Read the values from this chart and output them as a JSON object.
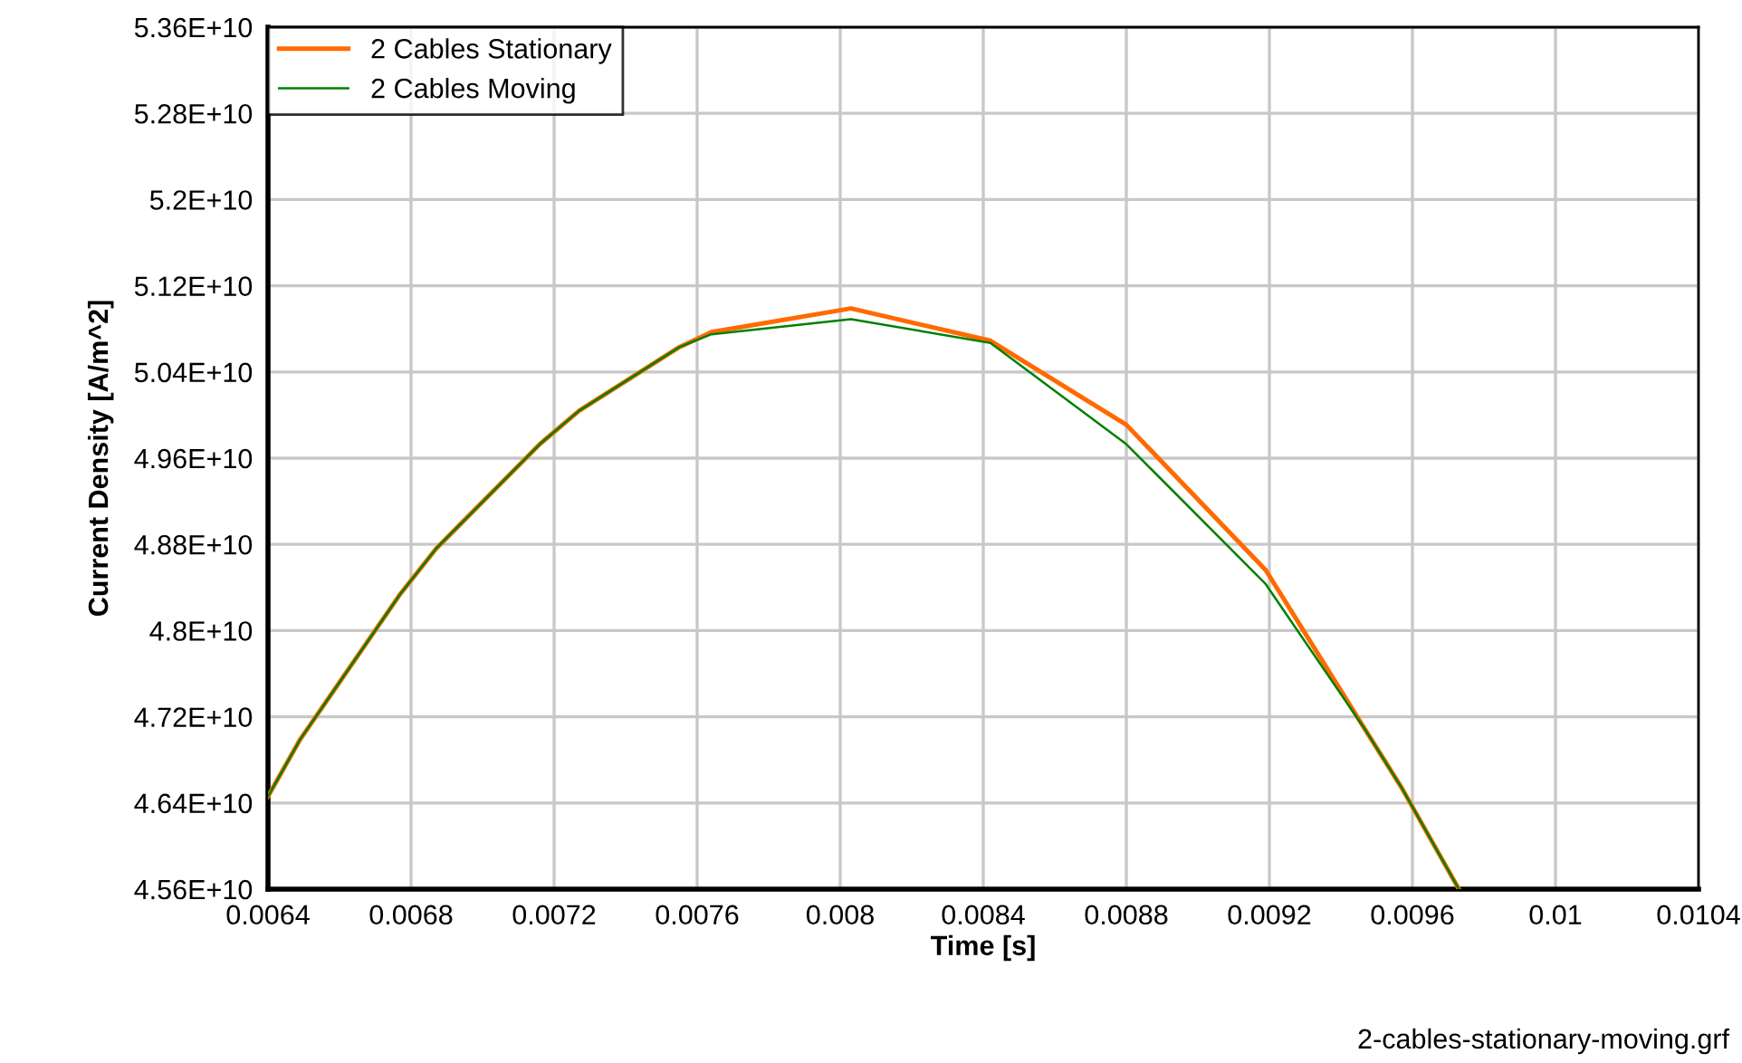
{
  "chart_data": {
    "type": "line",
    "xlabel": "Time [s]",
    "ylabel": "Current Density [A/m^2]",
    "x": [
      0.0064,
      0.00649,
      0.00677,
      0.00687,
      0.00716,
      0.00727,
      0.00755,
      0.00764,
      0.00803,
      0.00842,
      0.0088,
      0.00919,
      0.00947,
      0.00957,
      0.00973
    ],
    "series": [
      {
        "name": "2 Cables Stationary",
        "color": "#ff6a00",
        "values": [
          46460000000.0,
          46990000000.0,
          48340000000.0,
          48760000000.0,
          49730000000.0,
          50040000000.0,
          50630000000.0,
          50770000000.0,
          50990000000.0,
          50690000000.0,
          49910000000.0,
          48560000000.0,
          47070000000.0,
          46540000000.0,
          45600000000.0
        ]
      },
      {
        "name": "2 Cables Moving",
        "color": "#008000",
        "values": [
          46460000000.0,
          46990000000.0,
          48340000000.0,
          48760000000.0,
          49730000000.0,
          50040000000.0,
          50630000000.0,
          50750000000.0,
          50890000000.0,
          50670000000.0,
          49730000000.0,
          48430000000.0,
          47070000000.0,
          46540000000.0,
          45600000000.0
        ]
      }
    ],
    "xlim": [
      0.0064,
      0.0104
    ],
    "xticks": [
      0.0064,
      0.0068,
      0.0072,
      0.0076,
      0.008,
      0.0084,
      0.0088,
      0.0092,
      0.0096,
      0.01,
      0.0104
    ],
    "ylim": [
      45600000000.0,
      53600000000.0
    ],
    "yticks": [
      {
        "value": 45600000000.0,
        "label": "4.56E+10"
      },
      {
        "value": 46400000000.0,
        "label": "4.64E+10"
      },
      {
        "value": 47200000000.0,
        "label": "4.72E+10"
      },
      {
        "value": 48000000000.0,
        "label": "4.8E+10"
      },
      {
        "value": 48800000000.0,
        "label": "4.88E+10"
      },
      {
        "value": 49600000000.0,
        "label": "4.96E+10"
      },
      {
        "value": 50400000000.0,
        "label": "5.04E+10"
      },
      {
        "value": 51200000000.0,
        "label": "5.12E+10"
      },
      {
        "value": 52000000000.0,
        "label": "5.2E+10"
      },
      {
        "value": 52800000000.0,
        "label": "5.28E+10"
      },
      {
        "value": 53600000000.0,
        "label": "5.36E+10"
      }
    ],
    "grid": true,
    "legend": "top left",
    "marker": "none",
    "line_style": "solid",
    "annotations": [
      "2-cables-stationary-moving.grf"
    ]
  }
}
